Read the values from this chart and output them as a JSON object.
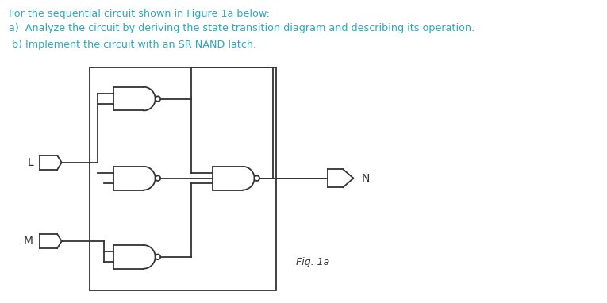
{
  "title_line1": "For the sequential circuit shown in Figure 1a below:",
  "title_line2": "a)  Analyze the circuit by deriving the state transition diagram and describing its operation.",
  "title_line3": " b) Implement the circuit with an SR NAND latch.",
  "text_color": "#2aaabf",
  "fig_label": "Fig. 1a",
  "gate_color": "#333333",
  "bg_color": "#ffffff",
  "label_L": "L",
  "label_M": "M",
  "label_N": "N",
  "lw": 1.3
}
